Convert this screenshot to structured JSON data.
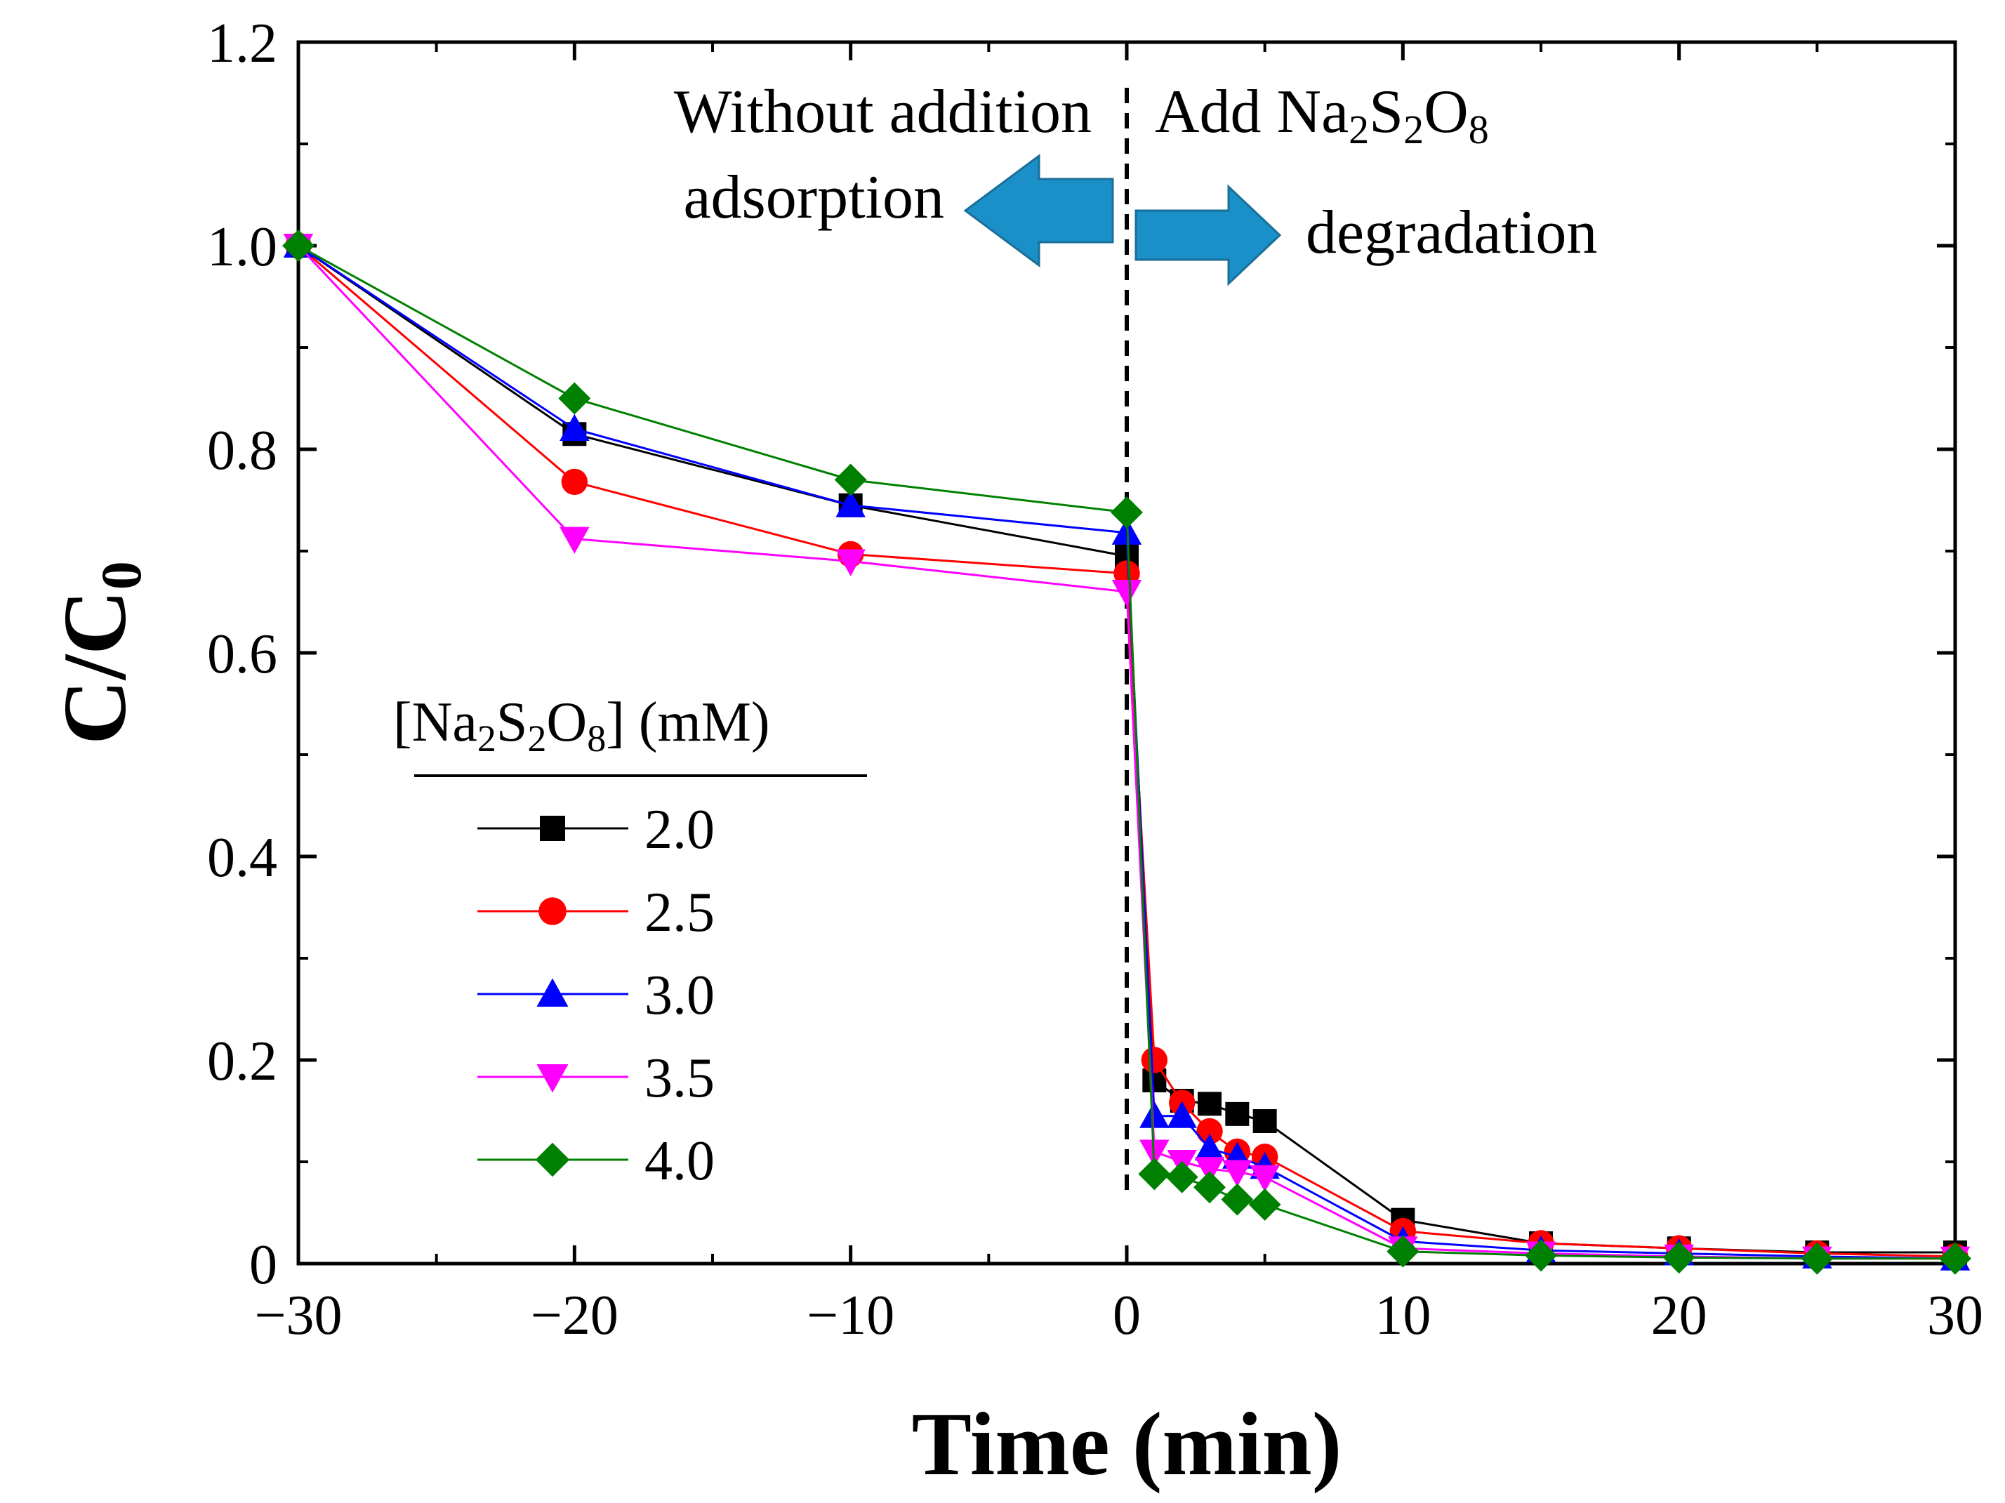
{
  "chart_data": {
    "type": "line",
    "xlabel": "Time (min)",
    "ylabel": {
      "main": "C/C",
      "sub": "0"
    },
    "xlim": [
      -30,
      30
    ],
    "ylim": [
      0,
      1.2
    ],
    "x_ticks": [
      -30,
      -20,
      -10,
      0,
      10,
      20,
      30
    ],
    "x_tick_labels": [
      "−30",
      "−20",
      "−10",
      "0",
      "10",
      "20",
      "30"
    ],
    "y_ticks": [
      0,
      0.2,
      0.4,
      0.6,
      0.8,
      1.0,
      1.2
    ],
    "y_tick_labels": [
      "0",
      "0.2",
      "0.4",
      "0.6",
      "0.8",
      "1.0",
      "1.2"
    ],
    "divider_x": 0,
    "annotations": {
      "left_line1": "Without addition",
      "left_line2": "adsorption",
      "right_prefix": "Add Na",
      "right_sub1": "2",
      "right_mid": "S",
      "right_sub2": "2",
      "right_mid2": "O",
      "right_sub3": "8",
      "right_line2": "degradation"
    },
    "arrow_color": "#1b8fc7",
    "legend": {
      "title_prefix": "[Na",
      "title_sub1": "2",
      "title_mid": "S",
      "title_sub2": "2",
      "title_mid2": "O",
      "title_sub3": "8",
      "title_suffix": "] (mM)"
    },
    "x": [
      -30,
      -20,
      -10,
      0,
      1,
      2,
      3,
      4,
      5,
      10,
      15,
      20,
      25,
      30
    ],
    "series": [
      {
        "name": "2.0",
        "color": "#000000",
        "marker": "square",
        "values": [
          1.0,
          0.815,
          0.745,
          0.695,
          0.18,
          0.16,
          0.157,
          0.147,
          0.14,
          0.043,
          0.02,
          0.015,
          0.011,
          0.011
        ]
      },
      {
        "name": "2.5",
        "color": "#ff0000",
        "marker": "circle",
        "values": [
          1.0,
          0.768,
          0.697,
          0.678,
          0.2,
          0.158,
          0.13,
          0.11,
          0.105,
          0.032,
          0.02,
          0.015,
          0.01,
          0.007
        ]
      },
      {
        "name": "3.0",
        "color": "#0000ff",
        "marker": "triangle-up",
        "values": [
          1.0,
          0.82,
          0.745,
          0.718,
          0.145,
          0.145,
          0.113,
          0.105,
          0.095,
          0.022,
          0.013,
          0.01,
          0.007,
          0.005
        ]
      },
      {
        "name": "3.5",
        "color": "#ff00ff",
        "marker": "triangle-down",
        "values": [
          1.0,
          0.712,
          0.69,
          0.66,
          0.11,
          0.1,
          0.093,
          0.09,
          0.085,
          0.015,
          0.01,
          0.007,
          0.005,
          0.005
        ]
      },
      {
        "name": "4.0",
        "color": "#008000",
        "marker": "diamond",
        "values": [
          1.0,
          0.85,
          0.77,
          0.738,
          0.088,
          0.085,
          0.075,
          0.063,
          0.058,
          0.012,
          0.008,
          0.006,
          0.005,
          0.005
        ]
      }
    ]
  }
}
